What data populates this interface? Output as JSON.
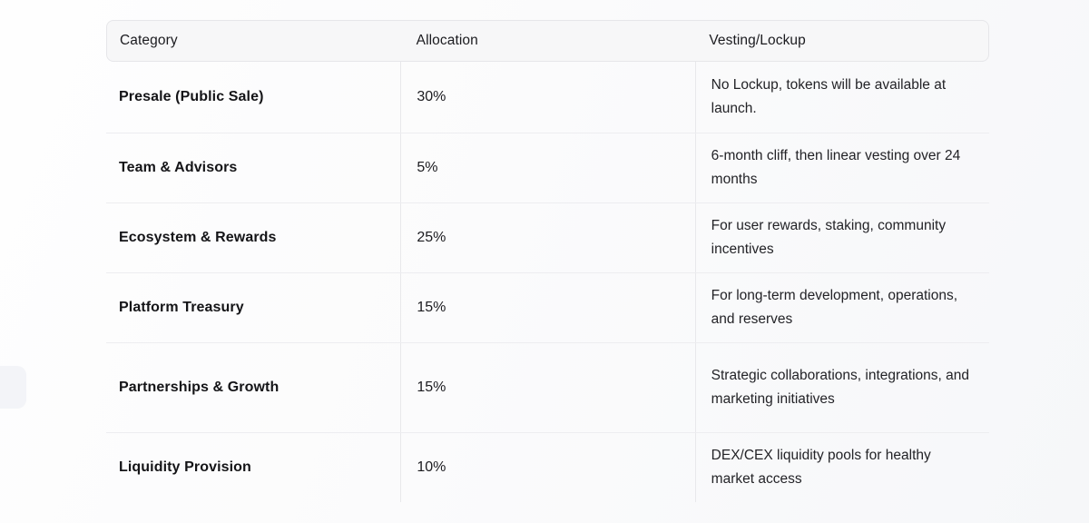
{
  "page": {
    "background_left": "#fefefe",
    "background_right": "#f6f7f9",
    "header_background": "#f7f7f8",
    "border_color": "#e6e6e9",
    "divider_color": "#ededf0"
  },
  "table": {
    "columns": [
      {
        "key": "category",
        "label": "Category"
      },
      {
        "key": "allocation",
        "label": "Allocation"
      },
      {
        "key": "vesting",
        "label": "Vesting/Lockup"
      }
    ],
    "rows": [
      {
        "category": "Presale (Public Sale)",
        "allocation": "30%",
        "vesting": "No Lockup, tokens will be available at launch."
      },
      {
        "category": "Team & Advisors",
        "allocation": "5%",
        "vesting": "6-month cliff, then linear vesting over 24 months"
      },
      {
        "category": "Ecosystem & Rewards",
        "allocation": "25%",
        "vesting": "For user rewards, staking, community incentives"
      },
      {
        "category": "Platform Treasury",
        "allocation": "15%",
        "vesting": "For long-term development, operations, and reserves"
      },
      {
        "category": "Partnerships & Growth",
        "allocation": "15%",
        "vesting": "Strategic collaborations, integrations, and marketing initiatives"
      },
      {
        "category": "Liquidity Provision",
        "allocation": "10%",
        "vesting": "DEX/CEX liquidity pools for healthy market access"
      }
    ]
  }
}
